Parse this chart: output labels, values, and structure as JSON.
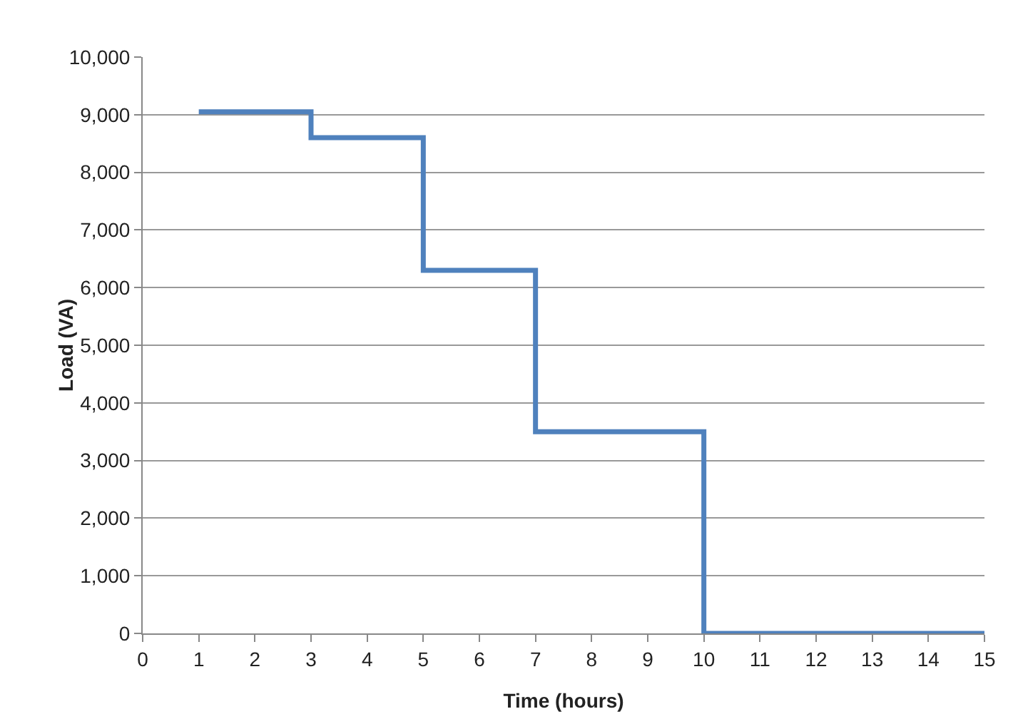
{
  "chart_data": {
    "type": "step",
    "xlabel": "Time (hours)",
    "ylabel": "Load (VA)",
    "x": [
      1,
      3,
      5,
      7,
      10,
      15
    ],
    "series": [
      {
        "color": "#4f81bd",
        "values": [
          9050,
          8600,
          6300,
          3500,
          0,
          0
        ]
      }
    ],
    "xlim": [
      0,
      15
    ],
    "xticks": [
      0,
      1,
      2,
      3,
      4,
      5,
      6,
      7,
      8,
      9,
      10,
      11,
      12,
      13,
      14,
      15
    ],
    "ylim": [
      0,
      10000
    ],
    "yticks": [
      {
        "value": 0,
        "label": "0"
      },
      {
        "value": 1000,
        "label": "1,000"
      },
      {
        "value": 2000,
        "label": "2,000"
      },
      {
        "value": 3000,
        "label": "3,000"
      },
      {
        "value": 4000,
        "label": "4,000"
      },
      {
        "value": 5000,
        "label": "5,000"
      },
      {
        "value": 6000,
        "label": "6,000"
      },
      {
        "value": 7000,
        "label": "7,000"
      },
      {
        "value": 8000,
        "label": "8,000"
      },
      {
        "value": 9000,
        "label": "9,000"
      },
      {
        "value": 10000,
        "label": "10,000"
      }
    ],
    "grid": "y",
    "marker": "none",
    "line_style": "solid"
  }
}
